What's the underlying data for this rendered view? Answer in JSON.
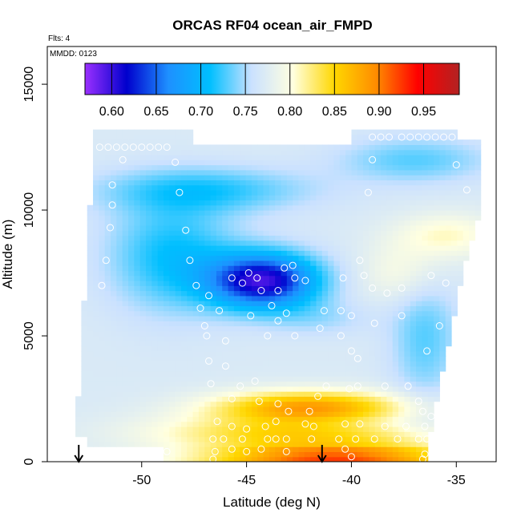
{
  "chart_data": {
    "type": "heatmap",
    "title": "ORCAS RF04 ocean_air_FMPD",
    "xlabel": "Latitude (deg N)",
    "ylabel": "Altitude (m)",
    "xlim": [
      -54.5,
      -33.1
    ],
    "ylim": [
      0,
      16500
    ],
    "x_ticks": [
      -50,
      -45,
      -40,
      -35
    ],
    "y_ticks": [
      0,
      5000,
      10000,
      15000
    ],
    "flights_note": "Flts: 4",
    "date_note": "MMDD: 0123",
    "colorbar": {
      "range": [
        0.57,
        0.99
      ],
      "ticks": [
        0.6,
        0.65,
        0.7,
        0.75,
        0.8,
        0.85,
        0.9,
        0.95
      ],
      "tick_labels": [
        "0.60",
        "0.65",
        "0.70",
        "0.75",
        "0.80",
        "0.85",
        "0.90",
        "0.95"
      ],
      "colors": [
        "#9b30ff",
        "#0000cd",
        "#1e90ff",
        "#00bfff",
        "#cae1ff",
        "#ffffe0",
        "#ffd700",
        "#ff8c00",
        "#ff0000",
        "#b22222"
      ]
    },
    "arrow_latitudes": [
      -53.0,
      -41.4
    ],
    "sample_points": [
      [
        -52.0,
        12500
      ],
      [
        -51.6,
        12500
      ],
      [
        -51.2,
        12500
      ],
      [
        -50.8,
        12500
      ],
      [
        -50.4,
        12500
      ],
      [
        -50.0,
        12500
      ],
      [
        -49.6,
        12500
      ],
      [
        -49.2,
        12500
      ],
      [
        -48.8,
        12500
      ],
      [
        -50.9,
        12000
      ],
      [
        -48.4,
        11900
      ],
      [
        -51.4,
        11000
      ],
      [
        -48.2,
        10700
      ],
      [
        -51.4,
        10200
      ],
      [
        -51.5,
        9300
      ],
      [
        -47.9,
        9200
      ],
      [
        -51.7,
        8000
      ],
      [
        -47.7,
        8000
      ],
      [
        -51.9,
        7000
      ],
      [
        -47.4,
        7000
      ],
      [
        -46.8,
        6600
      ],
      [
        -46.3,
        6000
      ],
      [
        -47.2,
        6100
      ],
      [
        -47.0,
        5400
      ],
      [
        -46.9,
        5000
      ],
      [
        -46.0,
        4800
      ],
      [
        -45.7,
        7300
      ],
      [
        -45.2,
        7100
      ],
      [
        -44.9,
        7500
      ],
      [
        -44.5,
        7300
      ],
      [
        -44.3,
        6800
      ],
      [
        -43.5,
        6800
      ],
      [
        -43.2,
        7700
      ],
      [
        -42.8,
        7800
      ],
      [
        -42.7,
        7300
      ],
      [
        -42.2,
        7200
      ],
      [
        -43.8,
        6200
      ],
      [
        -43.1,
        5900
      ],
      [
        -43.5,
        5600
      ],
      [
        -44.8,
        5800
      ],
      [
        -44.0,
        5000
      ],
      [
        -42.7,
        5000
      ],
      [
        -41.3,
        6000
      ],
      [
        -40.5,
        6000
      ],
      [
        -40.0,
        5800
      ],
      [
        -41.5,
        5300
      ],
      [
        -40.5,
        5000
      ],
      [
        -40.0,
        4400
      ],
      [
        -39.7,
        4100
      ],
      [
        -38.9,
        5500
      ],
      [
        -37.6,
        5800
      ],
      [
        -37.6,
        6900
      ],
      [
        -38.3,
        6700
      ],
      [
        -39.0,
        6900
      ],
      [
        -39.4,
        7400
      ],
      [
        -39.6,
        8000
      ],
      [
        -40.4,
        7300
      ],
      [
        -39.2,
        10700
      ],
      [
        -39.0,
        12000
      ],
      [
        -37.6,
        12900
      ],
      [
        -37.2,
        12900
      ],
      [
        -36.8,
        12900
      ],
      [
        -36.4,
        12900
      ],
      [
        -36.0,
        12900
      ],
      [
        -35.6,
        12900
      ],
      [
        -35.2,
        12900
      ],
      [
        -39.0,
        12900
      ],
      [
        -38.6,
        12900
      ],
      [
        -38.2,
        12900
      ],
      [
        -35.0,
        11800
      ],
      [
        -34.5,
        10800
      ],
      [
        -36.2,
        7400
      ],
      [
        -35.5,
        7100
      ],
      [
        -35.8,
        5400
      ],
      [
        -36.4,
        4400
      ],
      [
        -46.8,
        4000
      ],
      [
        -46.0,
        3800
      ],
      [
        -44.6,
        3200
      ],
      [
        -46.7,
        3100
      ],
      [
        -45.3,
        3000
      ],
      [
        -45.7,
        2500
      ],
      [
        -44.4,
        2400
      ],
      [
        -43.5,
        2300
      ],
      [
        -43.0,
        2000
      ],
      [
        -42.0,
        2000
      ],
      [
        -41.6,
        2600
      ],
      [
        -41.2,
        3000
      ],
      [
        -40.1,
        2900
      ],
      [
        -39.7,
        3000
      ],
      [
        -38.4,
        3000
      ],
      [
        -37.3,
        3000
      ],
      [
        -36.8,
        2400
      ],
      [
        -36.6,
        2000
      ],
      [
        -36.2,
        1800
      ],
      [
        -46.4,
        1600
      ],
      [
        -45.7,
        1400
      ],
      [
        -45.0,
        1300
      ],
      [
        -44.1,
        1400
      ],
      [
        -43.6,
        1600
      ],
      [
        -42.2,
        1500
      ],
      [
        -41.8,
        1400
      ],
      [
        -40.3,
        1500
      ],
      [
        -39.6,
        1500
      ],
      [
        -38.4,
        1400
      ],
      [
        -37.4,
        1400
      ],
      [
        -36.5,
        1400
      ],
      [
        -46.6,
        900
      ],
      [
        -46.1,
        900
      ],
      [
        -45.2,
        900
      ],
      [
        -44.0,
        900
      ],
      [
        -43.6,
        900
      ],
      [
        -43.1,
        900
      ],
      [
        -41.9,
        900
      ],
      [
        -40.6,
        900
      ],
      [
        -39.8,
        900
      ],
      [
        -38.9,
        900
      ],
      [
        -37.8,
        900
      ],
      [
        -36.8,
        900
      ],
      [
        -36.4,
        900
      ],
      [
        -46.5,
        400
      ],
      [
        -45.7,
        500
      ],
      [
        -45.0,
        400
      ],
      [
        -44.3,
        500
      ],
      [
        -43.1,
        400
      ],
      [
        -40.3,
        500
      ],
      [
        -40.0,
        200
      ],
      [
        -36.5,
        300
      ],
      [
        -36.6,
        100
      ],
      [
        -46.6,
        100
      ],
      [
        -48.8,
        400
      ]
    ]
  }
}
